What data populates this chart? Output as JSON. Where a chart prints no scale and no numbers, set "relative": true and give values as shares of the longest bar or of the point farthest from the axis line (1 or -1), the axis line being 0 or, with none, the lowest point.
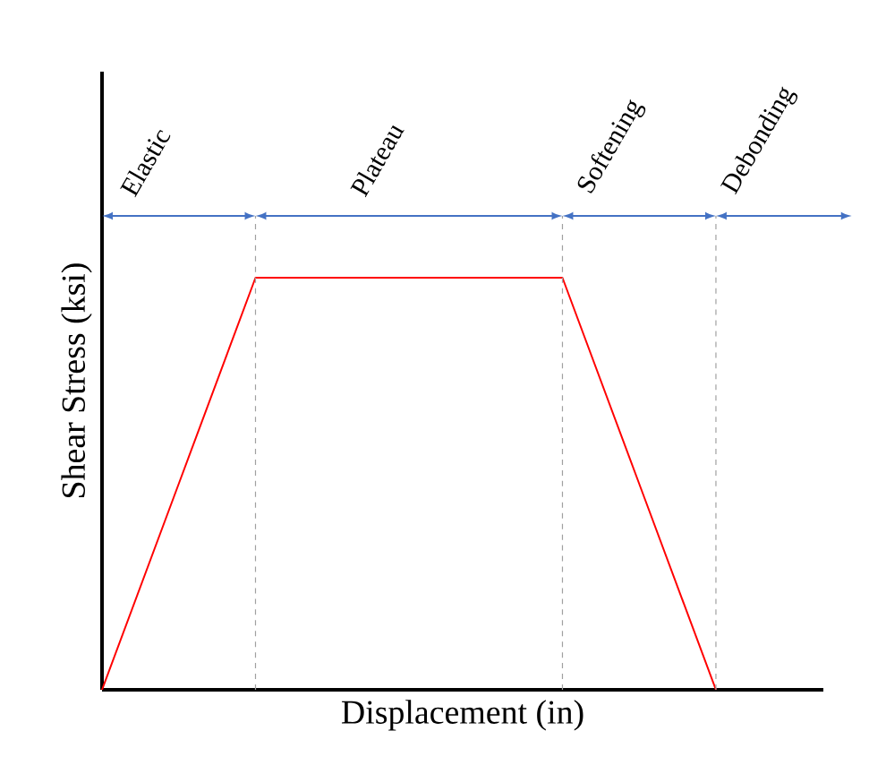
{
  "chart_data": {
    "type": "line",
    "relative": true,
    "grid": "x",
    "xlabel": "Displacement (in)",
    "ylabel": "Shear Stress (ksi)",
    "categories": [
      null,
      null,
      null,
      null,
      null,
      null,
      null,
      null,
      null
    ],
    "series": [
      {
        "color": "#ff0000",
        "values": [
          0,
          0.5,
          1,
          1,
          1,
          1,
          1,
          0.5,
          0
        ]
      }
    ],
    "annotations": [
      "Elastic",
      "Plateau",
      "Softening",
      "Debonding"
    ]
  }
}
